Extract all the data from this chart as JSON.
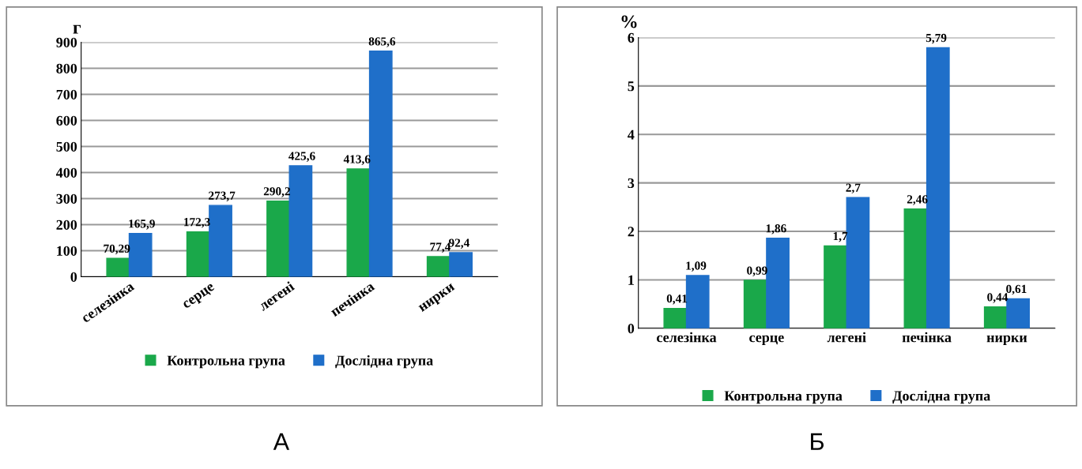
{
  "chart_data": [
    {
      "type": "bar",
      "ylabel": "г",
      "categories": [
        "селезінка",
        "серце",
        "легені",
        "печінка",
        "нирки"
      ],
      "ylim": [
        0,
        900
      ],
      "yticks": [
        0,
        100,
        200,
        300,
        400,
        500,
        600,
        700,
        800,
        900
      ],
      "grid": "y",
      "legend": "bottom",
      "annotations": [
        "А"
      ],
      "series": [
        {
          "name": "Контрольна група",
          "color": "#1aa84a",
          "values": [
            70.29,
            172.3,
            290.2,
            413.6,
            77.4
          ],
          "value_labels": [
            "70,29",
            "172,3",
            "290,2",
            "413,6",
            "77,4"
          ]
        },
        {
          "name": "Дослідна група",
          "color": "#1f6fc9",
          "values": [
            165.9,
            273.7,
            425.6,
            865.6,
            92.4
          ],
          "value_labels": [
            "165,9",
            "273,7",
            "425,6",
            "865,6",
            "92,4"
          ]
        }
      ]
    },
    {
      "type": "bar",
      "ylabel": "%",
      "categories": [
        "селезінка",
        "серце",
        "легені",
        "печінка",
        "нирки"
      ],
      "ylim": [
        0,
        6
      ],
      "yticks": [
        0,
        1,
        2,
        3,
        4,
        5,
        6
      ],
      "grid": "y",
      "legend": "bottom",
      "annotations": [
        "Б"
      ],
      "series": [
        {
          "name": "Контрольна група",
          "color": "#1aa84a",
          "values": [
            0.41,
            0.99,
            1.7,
            2.46,
            0.44
          ],
          "value_labels": [
            "0,41",
            "0,99",
            "1,7",
            "2,46",
            "0,44"
          ]
        },
        {
          "name": "Дослідна група",
          "color": "#1f6fc9",
          "values": [
            1.09,
            1.86,
            2.7,
            5.79,
            0.61
          ],
          "value_labels": [
            "1,09",
            "1,86",
            "2,7",
            "5,79",
            "0,61"
          ]
        }
      ]
    }
  ]
}
